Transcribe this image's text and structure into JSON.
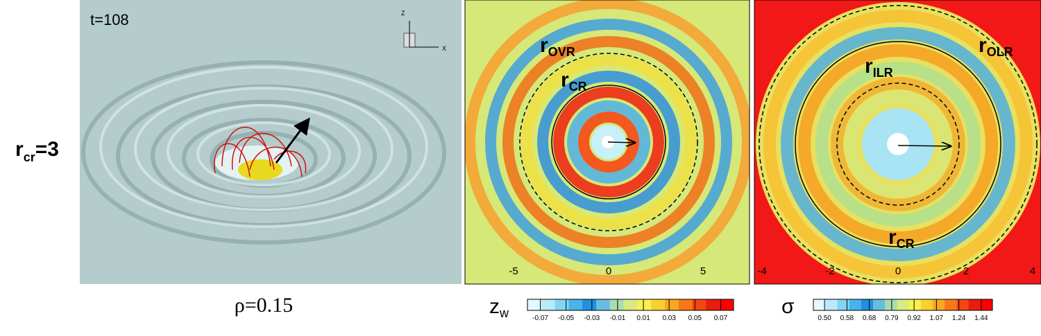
{
  "row_label": {
    "main": "r",
    "sub": "cr",
    "suffix": "=3"
  },
  "panels": [
    {
      "time_label": "t=108",
      "caption": "ρ=0.15",
      "axis_labels": [
        "Z",
        "X"
      ]
    },
    {
      "x_ticks": [
        "-5",
        "0",
        "5"
      ],
      "labels": [
        {
          "main": "r",
          "sub": "OVR"
        },
        {
          "main": "r",
          "sub": "CR"
        }
      ],
      "colorbar": {
        "label": {
          "main": "z",
          "sub": "w"
        },
        "ticks": [
          "-0.07",
          "-0.05",
          "-0.03",
          "-0.01",
          "0.01",
          "0.03",
          "0.05",
          "0.07"
        ]
      }
    },
    {
      "x_ticks": [
        "-4",
        "-2",
        "0",
        "2",
        "4"
      ],
      "labels": [
        {
          "main": "r",
          "sub": "OLR"
        },
        {
          "main": "r",
          "sub": "ILR"
        },
        {
          "main": "r",
          "sub": "CR"
        }
      ],
      "colorbar": {
        "label": "σ",
        "ticks": [
          "0.50",
          "0.58",
          "0.68",
          "0.79",
          "0.92",
          "1.07",
          "1.24",
          "1.44"
        ]
      }
    }
  ]
}
